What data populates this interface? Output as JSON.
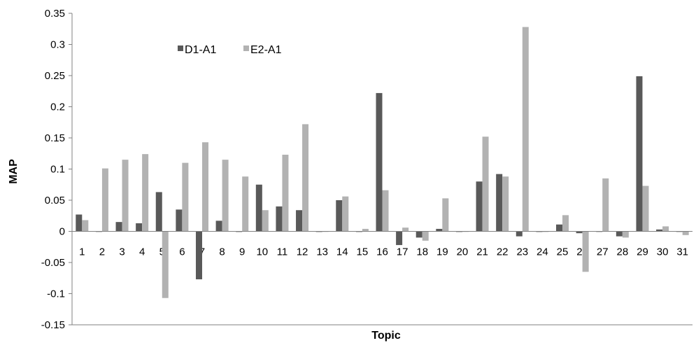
{
  "chart_data": {
    "type": "bar",
    "xlabel": "Topic",
    "ylabel": "MAP",
    "ylim": [
      -0.15,
      0.35
    ],
    "yticks": [
      "0.35",
      "0.3",
      "0.25",
      "0.2",
      "0.15",
      "0.1",
      "0.05",
      "0",
      "-0.05",
      "-0.1",
      "-0.15"
    ],
    "ytick_values": [
      0.35,
      0.3,
      0.25,
      0.2,
      0.15,
      0.1,
      0.05,
      0,
      -0.05,
      -0.1,
      -0.15
    ],
    "categories": [
      "1",
      "2",
      "3",
      "4",
      "5",
      "6",
      "7",
      "8",
      "9",
      "10",
      "11",
      "12",
      "13",
      "14",
      "15",
      "16",
      "17",
      "18",
      "19",
      "20",
      "21",
      "22",
      "23",
      "24",
      "25",
      "26",
      "27",
      "28",
      "29",
      "30",
      "31"
    ],
    "grid": false,
    "legend_position": "top-left",
    "series": [
      {
        "name": "D1-A1",
        "color": "#595959",
        "values": [
          0.027,
          0,
          0.015,
          0.013,
          0.063,
          0.035,
          -0.077,
          0.017,
          -0.001,
          0.075,
          0.04,
          0.034,
          -0.001,
          0.05,
          -0.001,
          0.222,
          -0.022,
          -0.01,
          0.004,
          -0.001,
          0.08,
          0.092,
          -0.008,
          -0.001,
          0.011,
          -0.003,
          0,
          -0.008,
          0.249,
          0.003,
          0
        ]
      },
      {
        "name": "E2-A1",
        "color": "#b2b2b2",
        "values": [
          0.018,
          0.101,
          0.115,
          0.124,
          -0.107,
          0.11,
          0.143,
          0.115,
          0.088,
          0.034,
          0.123,
          0.172,
          0,
          0.056,
          0.004,
          0.066,
          0.006,
          -0.015,
          0.053,
          0,
          0.152,
          0.088,
          0.328,
          -0.001,
          0.026,
          -0.065,
          0.085,
          -0.01,
          0.073,
          0.008,
          -0.006
        ]
      }
    ]
  }
}
